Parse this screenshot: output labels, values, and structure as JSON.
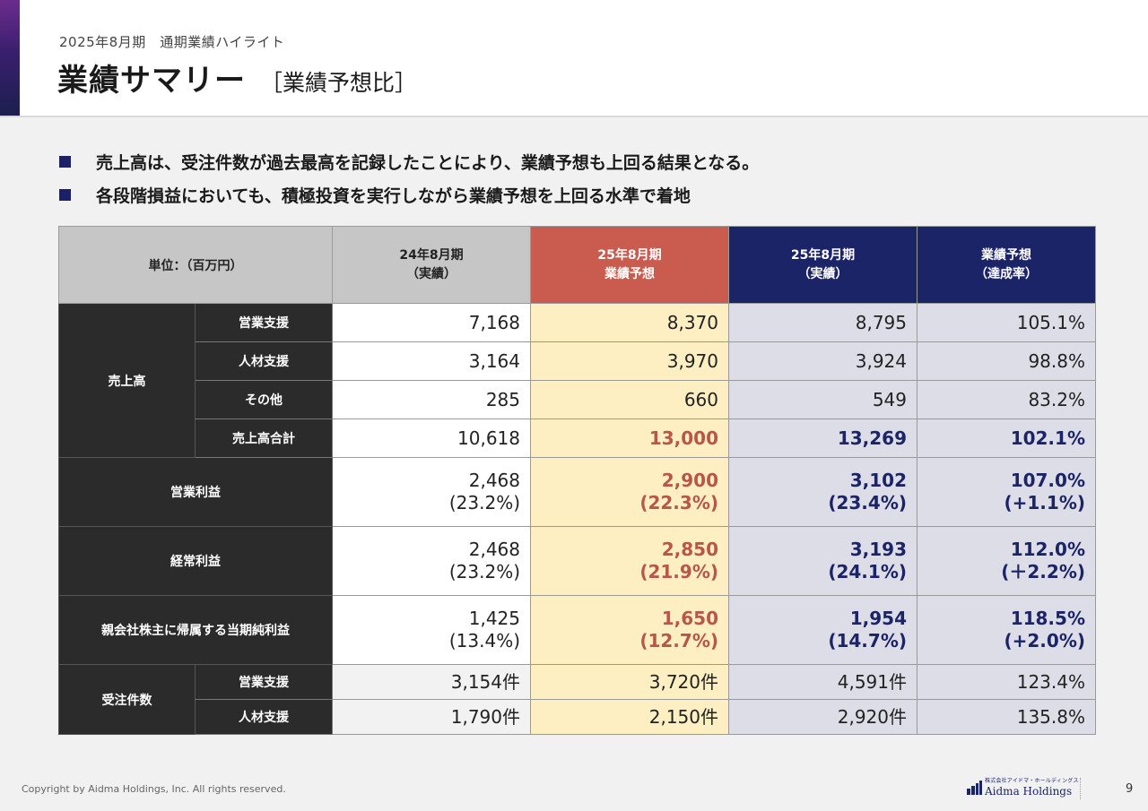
{
  "header": {
    "subtitle": "2025年8月期　通期業績ハイライト",
    "title": "業績サマリー",
    "title_tag": "［業績予想比］"
  },
  "bullets": [
    "売上高は、受注件数が過去最高を記録したことにより、業績予想も上回る結果となる。",
    "各段階損益においても、積極投資を実行しながら業績予想を上回る水準で着地"
  ],
  "table": {
    "unit_label": "単位：（百万円）",
    "columns": [
      {
        "line1": "24年8月期",
        "line2": "（実績）"
      },
      {
        "line1": "25年8月期",
        "line2": "業績予想"
      },
      {
        "line1": "25年8月期",
        "line2": "（実績）"
      },
      {
        "line1": "業績予想",
        "line2": "（達成率）"
      }
    ],
    "sales": {
      "group": "売上高",
      "rows": [
        {
          "label": "営業支援",
          "values": [
            "7,168",
            "8,370",
            "8,795",
            "105.1%"
          ]
        },
        {
          "label": "人材支援",
          "values": [
            "3,164",
            "3,970",
            "3,924",
            "98.8%"
          ]
        },
        {
          "label": "その他",
          "values": [
            "285",
            "660",
            "549",
            "83.2%"
          ]
        },
        {
          "label": "売上高合計",
          "values": [
            "10,618",
            "13,000",
            "13,269",
            "102.1%"
          ]
        }
      ]
    },
    "profits": [
      {
        "label": "営業利益",
        "values": [
          "2,468",
          "2,900",
          "3,102",
          "107.0%"
        ],
        "subs": [
          "(23.2%)",
          "(22.3%)",
          "(23.4%)",
          "(+1.1%)"
        ]
      },
      {
        "label": "経常利益",
        "values": [
          "2,468",
          "2,850",
          "3,193",
          "112.0%"
        ],
        "subs": [
          "(23.2%)",
          "(21.9%)",
          "(24.1%)",
          "(＋2.2%)"
        ]
      },
      {
        "label": "親会社株主に帰属する当期純利益",
        "values": [
          "1,425",
          "1,650",
          "1,954",
          "118.5%"
        ],
        "subs": [
          "(13.4%)",
          "(12.7%)",
          "(14.7%)",
          "(+2.0%)"
        ]
      }
    ],
    "orders": {
      "group": "受注件数",
      "rows": [
        {
          "label": "営業支援",
          "values": [
            "3,154件",
            "3,720件",
            "4,591件",
            "123.4%"
          ]
        },
        {
          "label": "人材支援",
          "values": [
            "1,790件",
            "2,150件",
            "2,920件",
            "135.8%"
          ]
        }
      ]
    }
  },
  "footer": {
    "copyright": "Copyright by Aidma Holdings, Inc. All rights reserved.",
    "logo_small": "株式会社アイドマ・ホールディングス",
    "logo_name": "Aidma Holdings",
    "page": "9"
  },
  "colors": {
    "navy": "#1c2468",
    "red_header": "#c95b4f",
    "forecast_bg": "#fdefc2",
    "actual_bg": "#dddde8",
    "dark_row": "#2b2b2b"
  }
}
